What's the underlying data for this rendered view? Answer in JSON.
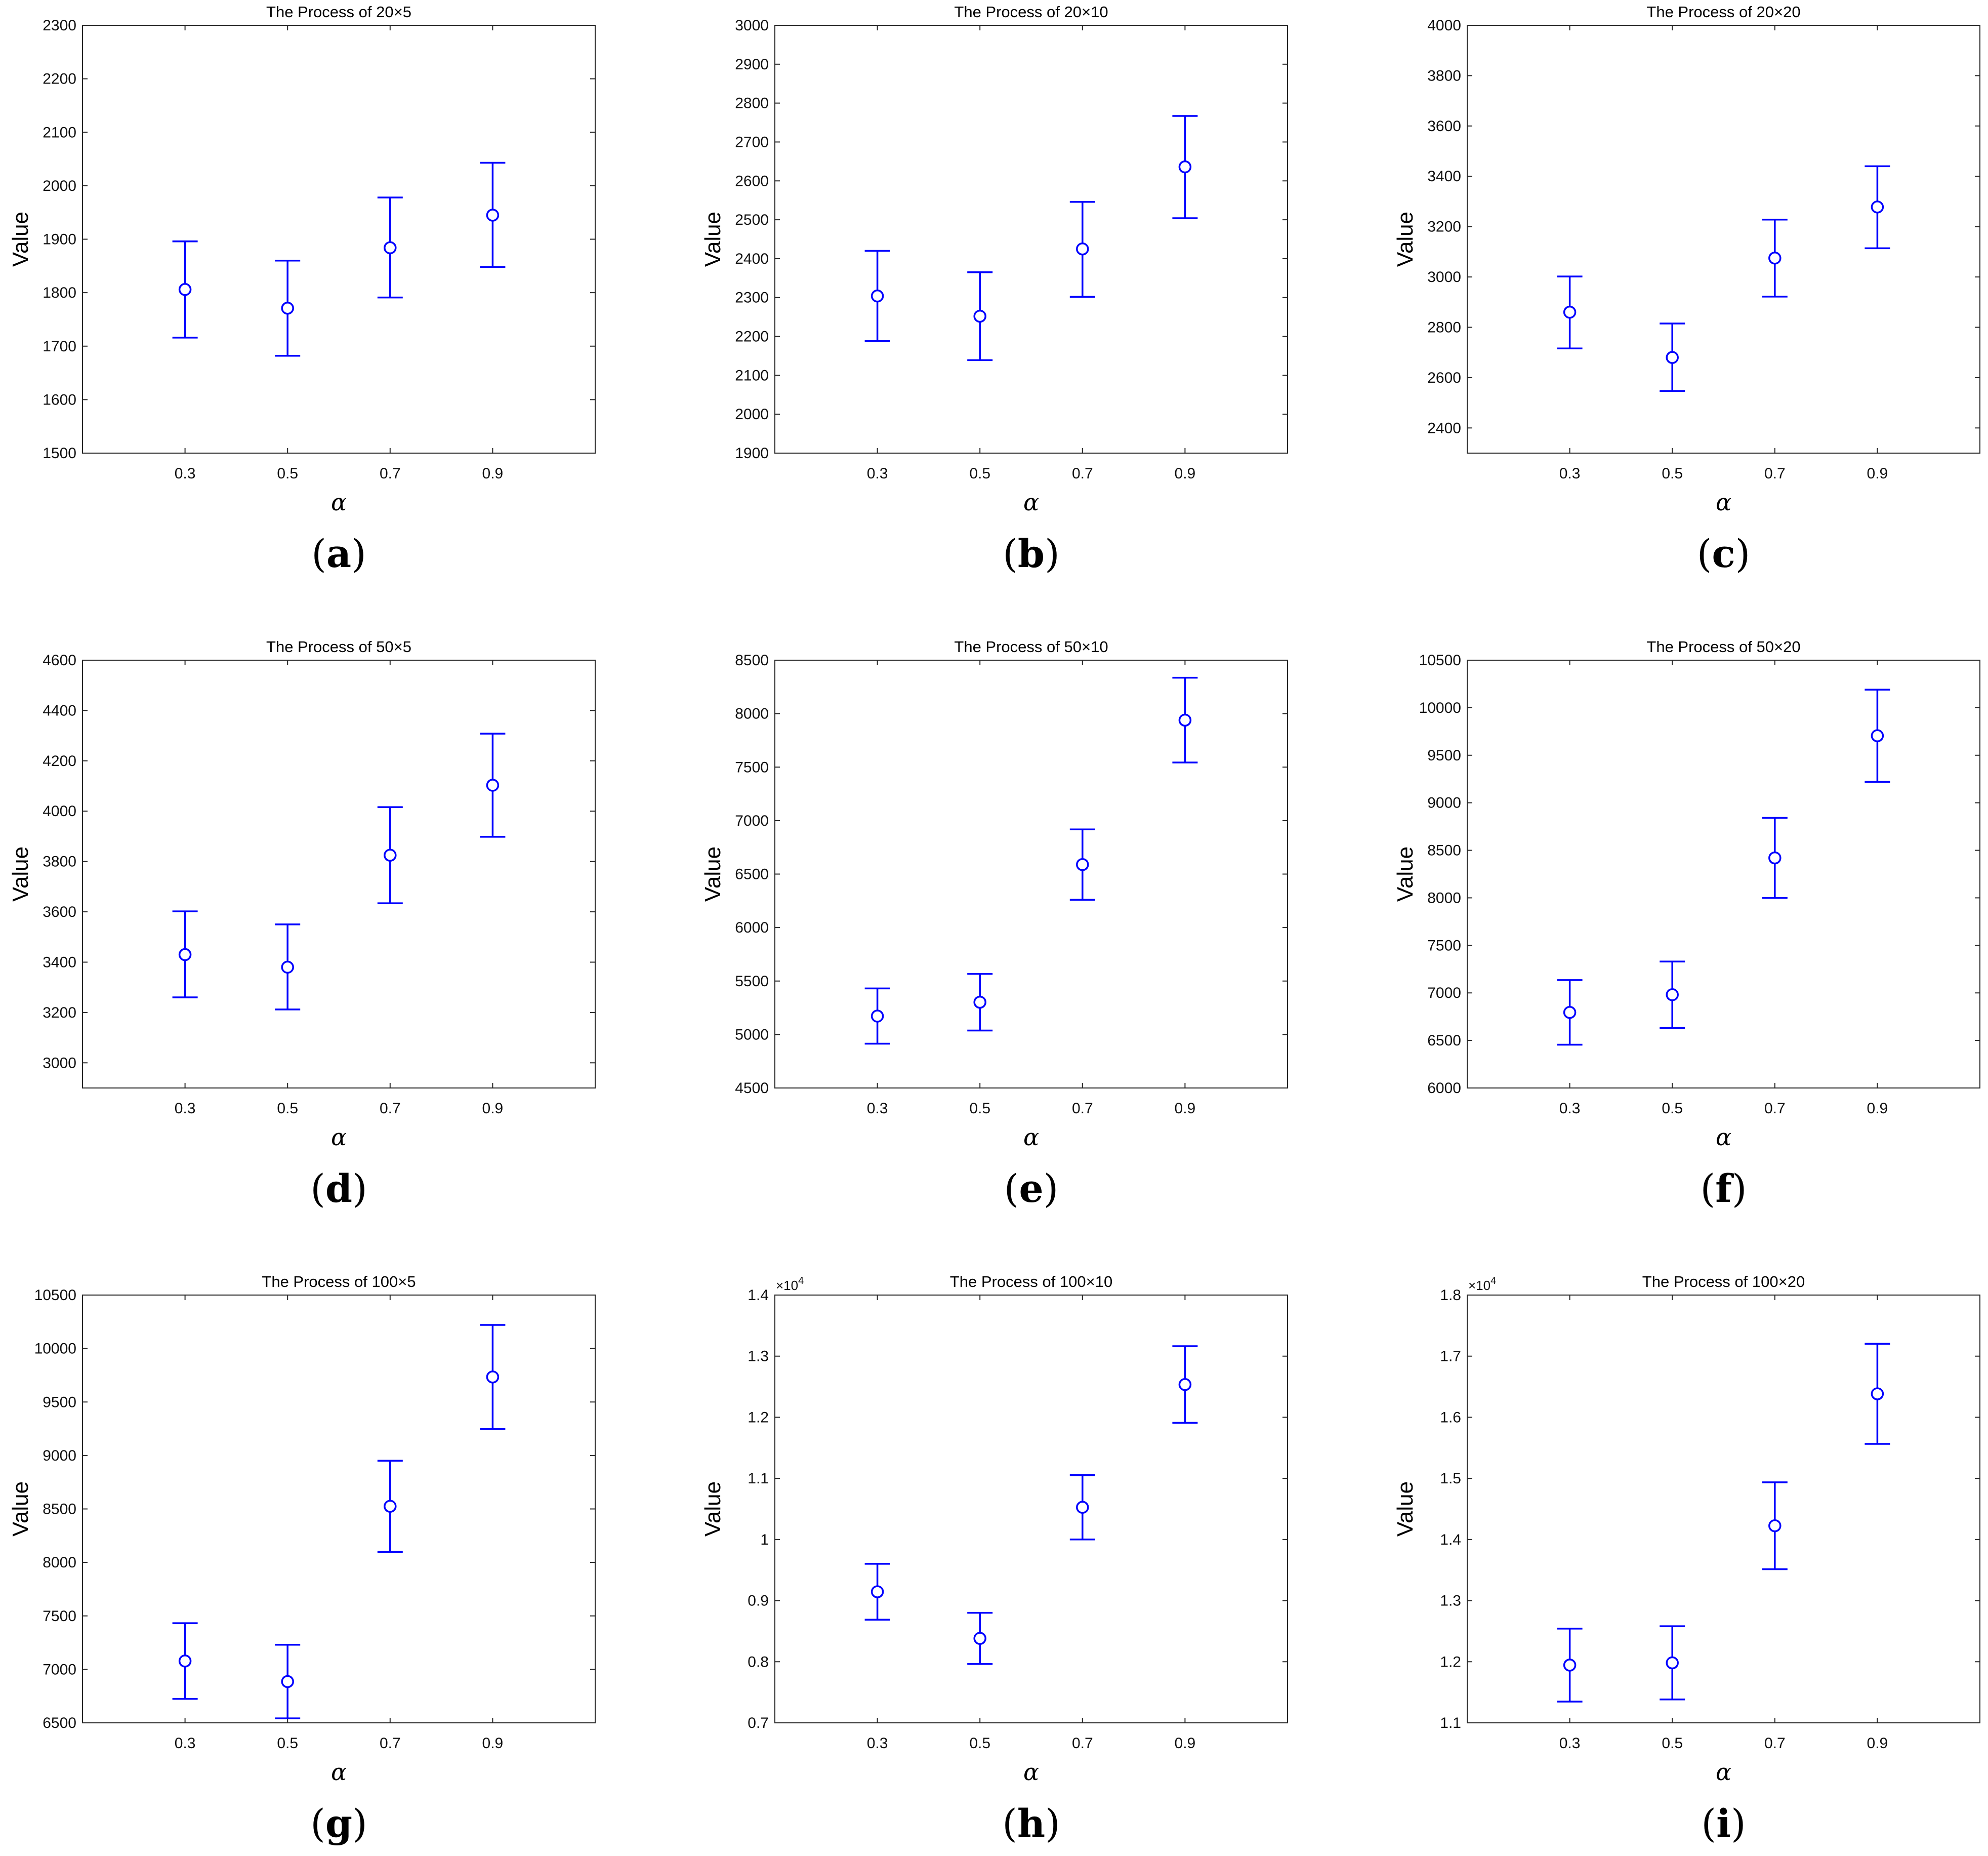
{
  "colors": {
    "series": "#0000ff",
    "axes": "#262626",
    "background": "#ffffff",
    "text": "#000000"
  },
  "chart_data": [
    {
      "panel": "a",
      "type": "errorbar",
      "title": "The Process of 20×5",
      "xlabel": "α",
      "ylabel": "Value",
      "x": [
        0.3,
        0.5,
        0.7,
        0.9
      ],
      "xticks": [
        "0.3",
        "0.5",
        "0.7",
        "0.9"
      ],
      "mean": [
        1806,
        1771,
        1884,
        1945
      ],
      "lower": [
        1716,
        1682,
        1791,
        1848
      ],
      "upper": [
        1896,
        1860,
        1978,
        2043
      ],
      "ylim": [
        1500,
        2300
      ],
      "yticks": [
        1500,
        1600,
        1700,
        1800,
        1900,
        2000,
        2100,
        2200,
        2300
      ],
      "yticklabels": [
        "1500",
        "1600",
        "1700",
        "1800",
        "1900",
        "2000",
        "2100",
        "2200",
        "2300"
      ],
      "exponent": ""
    },
    {
      "panel": "b",
      "type": "errorbar",
      "title": "The Process of 20×10",
      "xlabel": "α",
      "ylabel": "Value",
      "x": [
        0.3,
        0.5,
        0.7,
        0.9
      ],
      "xticks": [
        "0.3",
        "0.5",
        "0.7",
        "0.9"
      ],
      "mean": [
        2304,
        2252,
        2425,
        2636
      ],
      "lower": [
        2188,
        2139,
        2302,
        2504
      ],
      "upper": [
        2420,
        2365,
        2546,
        2767
      ],
      "ylim": [
        1900,
        3000
      ],
      "yticks": [
        1900,
        2000,
        2100,
        2200,
        2300,
        2400,
        2500,
        2600,
        2700,
        2800,
        2900,
        3000
      ],
      "yticklabels": [
        "1900",
        "2000",
        "2100",
        "2200",
        "2300",
        "2400",
        "2500",
        "2600",
        "2700",
        "2800",
        "2900",
        "3000"
      ],
      "exponent": ""
    },
    {
      "panel": "c",
      "type": "errorbar",
      "title": "The Process of 20×20",
      "xlabel": "α",
      "ylabel": "Value",
      "x": [
        0.3,
        0.5,
        0.7,
        0.9
      ],
      "xticks": [
        "0.3",
        "0.5",
        "0.7",
        "0.9"
      ],
      "mean": [
        2860,
        2680,
        3075,
        3278
      ],
      "lower": [
        2716,
        2547,
        2922,
        3114
      ],
      "upper": [
        3002,
        2815,
        3228,
        3440
      ],
      "ylim": [
        2300,
        4000
      ],
      "yticks": [
        2400,
        2600,
        2800,
        3000,
        3200,
        3400,
        3600,
        3800,
        4000
      ],
      "yticklabels": [
        "2400",
        "2600",
        "2800",
        "3000",
        "3200",
        "3400",
        "3600",
        "3800",
        "4000"
      ],
      "exponent": ""
    },
    {
      "panel": "d",
      "type": "errorbar",
      "title": "The Process of 50×5",
      "xlabel": "α",
      "ylabel": "Value",
      "x": [
        0.3,
        0.5,
        0.7,
        0.9
      ],
      "xticks": [
        "0.3",
        "0.5",
        "0.7",
        "0.9"
      ],
      "mean": [
        3430,
        3380,
        3825,
        4103
      ],
      "lower": [
        3260,
        3212,
        3634,
        3898
      ],
      "upper": [
        3602,
        3550,
        4016,
        4308
      ],
      "ylim": [
        2900,
        4600
      ],
      "yticks": [
        3000,
        3200,
        3400,
        3600,
        3800,
        4000,
        4200,
        4400,
        4600
      ],
      "yticklabels": [
        "3000",
        "3200",
        "3400",
        "3600",
        "3800",
        "4000",
        "4200",
        "4400",
        "4600"
      ],
      "exponent": ""
    },
    {
      "panel": "e",
      "type": "errorbar",
      "title": "The Process of 50×10",
      "xlabel": "α",
      "ylabel": "Value",
      "x": [
        0.3,
        0.5,
        0.7,
        0.9
      ],
      "xticks": [
        "0.3",
        "0.5",
        "0.7",
        "0.9"
      ],
      "mean": [
        5172,
        5302,
        6589,
        7939
      ],
      "lower": [
        4914,
        5037,
        6260,
        7543
      ],
      "upper": [
        5431,
        5567,
        6918,
        8336
      ],
      "ylim": [
        4500,
        8500
      ],
      "yticks": [
        4500,
        5000,
        5500,
        6000,
        6500,
        7000,
        7500,
        8000,
        8500
      ],
      "yticklabels": [
        "4500",
        "5000",
        "5500",
        "6000",
        "6500",
        "7000",
        "7500",
        "8000",
        "8500"
      ],
      "exponent": ""
    },
    {
      "panel": "f",
      "type": "errorbar",
      "title": "The Process of 50×20",
      "xlabel": "α",
      "ylabel": "Value",
      "x": [
        0.3,
        0.5,
        0.7,
        0.9
      ],
      "xticks": [
        "0.3",
        "0.5",
        "0.7",
        "0.9"
      ],
      "mean": [
        6795,
        6981,
        8420,
        9705
      ],
      "lower": [
        6455,
        6632,
        7999,
        9220
      ],
      "upper": [
        7135,
        7330,
        8841,
        10190
      ],
      "ylim": [
        6000,
        10500
      ],
      "yticks": [
        6000,
        6500,
        7000,
        7500,
        8000,
        8500,
        9000,
        9500,
        10000,
        10500
      ],
      "yticklabels": [
        "6000",
        "6500",
        "7000",
        "7500",
        "8000",
        "8500",
        "9000",
        "9500",
        "10000",
        "10500"
      ],
      "exponent": ""
    },
    {
      "panel": "g",
      "type": "errorbar",
      "title": "The Process of 100×5",
      "xlabel": "α",
      "ylabel": "Value",
      "x": [
        0.3,
        0.5,
        0.7,
        0.9
      ],
      "xticks": [
        "0.3",
        "0.5",
        "0.7",
        "0.9"
      ],
      "mean": [
        7078,
        6886,
        8525,
        9734
      ],
      "lower": [
        6724,
        6542,
        8099,
        9247
      ],
      "upper": [
        7432,
        7230,
        8951,
        10221
      ],
      "ylim": [
        6500,
        10500
      ],
      "yticks": [
        6500,
        7000,
        7500,
        8000,
        8500,
        9000,
        9500,
        10000,
        10500
      ],
      "yticklabels": [
        "6500",
        "7000",
        "7500",
        "8000",
        "8500",
        "9000",
        "9500",
        "10000",
        "10500"
      ],
      "exponent": ""
    },
    {
      "panel": "h",
      "type": "errorbar",
      "title": "The Process of 100×10",
      "xlabel": "α",
      "ylabel": "Value",
      "x": [
        0.3,
        0.5,
        0.7,
        0.9
      ],
      "xticks": [
        "0.3",
        "0.5",
        "0.7",
        "0.9"
      ],
      "mean": [
        0.9145,
        0.8382,
        1.0527,
        1.2536
      ],
      "lower": [
        0.8688,
        0.7963,
        1.0001,
        1.1909
      ],
      "upper": [
        0.9602,
        0.8801,
        1.1053,
        1.3163
      ],
      "ylim": [
        0.7,
        1.4
      ],
      "yticks": [
        0.7,
        0.8,
        0.9,
        1.0,
        1.1,
        1.2,
        1.3,
        1.4
      ],
      "yticklabels": [
        "0.7",
        "0.8",
        "0.9",
        "1",
        "1.1",
        "1.2",
        "1.3",
        "1.4"
      ],
      "exponent": "×10",
      "exponent_power": "4"
    },
    {
      "panel": "i",
      "type": "errorbar",
      "title": "The Process of 100×20",
      "xlabel": "α",
      "ylabel": "Value",
      "x": [
        0.3,
        0.5,
        0.7,
        0.9
      ],
      "xticks": [
        "0.3",
        "0.5",
        "0.7",
        "0.9"
      ],
      "mean": [
        1.1945,
        1.1982,
        1.4225,
        1.6384
      ],
      "lower": [
        1.1348,
        1.1383,
        1.3514,
        1.5565
      ],
      "upper": [
        1.2542,
        1.2581,
        1.4936,
        1.7203
      ],
      "ylim": [
        1.1,
        1.8
      ],
      "yticks": [
        1.1,
        1.2,
        1.3,
        1.4,
        1.5,
        1.6,
        1.7,
        1.8
      ],
      "yticklabels": [
        "1.1",
        "1.2",
        "1.3",
        "1.4",
        "1.5",
        "1.6",
        "1.7",
        "1.8"
      ],
      "exponent": "×10",
      "exponent_power": "4"
    }
  ]
}
